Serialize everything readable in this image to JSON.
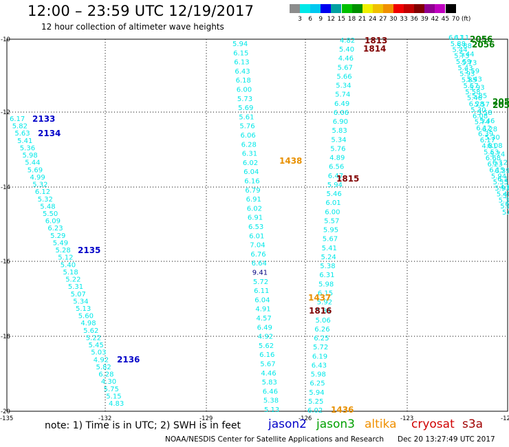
{
  "header": {
    "title": "12:00 – 23:59 UTC 12/19/2017",
    "subtitle": "12 hour collection of altimeter wave heights"
  },
  "colorscale": {
    "labels": [
      "3",
      "6",
      "9",
      "12",
      "15",
      "18",
      "21",
      "24",
      "27",
      "30",
      "33",
      "36",
      "39",
      "42",
      "45",
      "70",
      "(ft)"
    ],
    "colors": [
      "#8c8c8c",
      "#00e8e8",
      "#00c8f0",
      "#0000f0",
      "#00a0a0",
      "#00c000",
      "#009000",
      "#f0f000",
      "#f0c000",
      "#f09000",
      "#f00000",
      "#c00000",
      "#800000",
      "#900090",
      "#c000c0",
      "#000000"
    ]
  },
  "axes": {
    "lon_labels": [
      "-135",
      "-132",
      "-129",
      "-126",
      "-123",
      "-12"
    ],
    "lat_labels": [
      "-10",
      "-12",
      "-14",
      "-16",
      "-18",
      "-20"
    ]
  },
  "passes": [
    {
      "label": "2133",
      "mission": "jason2",
      "color": "#0000c8"
    },
    {
      "label": "2134",
      "mission": "jason2",
      "color": "#0000c8"
    },
    {
      "label": "2135",
      "mission": "jason2",
      "color": "#0000c8"
    },
    {
      "label": "2136",
      "mission": "jason2",
      "color": "#0000c8"
    },
    {
      "label": "1438",
      "mission": "altika",
      "color": "#e89000"
    },
    {
      "label": "1437",
      "mission": "altika",
      "color": "#e89000"
    },
    {
      "label": "1436",
      "mission": "altika",
      "color": "#e89000"
    },
    {
      "label": "1813",
      "mission": "cryosat",
      "color": "#800000"
    },
    {
      "label": "1814",
      "mission": "cryosat",
      "color": "#800000"
    },
    {
      "label": "1815",
      "mission": "cryosat",
      "color": "#800000"
    },
    {
      "label": "1816",
      "mission": "cryosat",
      "color": "#800000"
    },
    {
      "label": "2056",
      "mission": "jason3",
      "color": "#008000"
    },
    {
      "label": "2056",
      "mission": "jason3",
      "color": "#008000"
    },
    {
      "label": "205",
      "mission": "jason3",
      "color": "#008000"
    },
    {
      "label": "205",
      "mission": "jason3",
      "color": "#008000"
    }
  ],
  "tracks": {
    "left": [
      "6.17",
      "5.82",
      "5.63",
      "5.41",
      "5.36",
      "5.98",
      "5.44",
      "5.69",
      "4.99",
      "5.32",
      "6.12",
      "5.32",
      "5.48",
      "5.50",
      "6.09",
      "6.23",
      "5.29",
      "5.49",
      "5.28",
      "5.12",
      "5.40",
      "5.18",
      "5.22",
      "5.31",
      "5.07",
      "5.34",
      "5.13",
      "5.60",
      "4.98",
      "5.62",
      "5.22",
      "5.45",
      "5.03",
      "4.92",
      "5.82",
      "6.28",
      "4.30",
      "5.75",
      "5.15",
      "4.83"
    ],
    "mid_a": [
      "5.94",
      "6.15",
      "6.13",
      "6.43",
      "6.18",
      "6.00",
      "5.73",
      "5.69",
      "5.61",
      "5.76",
      "6.06",
      "6.28",
      "6.31",
      "6.02",
      "6.04",
      "6.16",
      "6.79",
      "6.91",
      "6.02",
      "6.91",
      "6.53",
      "6.01",
      "7.04",
      "6.76",
      "6.64",
      "9.41",
      "5.72",
      "6.11",
      "6.04",
      "4.91",
      "4.57",
      "6.49",
      "4.92",
      "5.62",
      "6.16",
      "5.67",
      "4.46",
      "5.83",
      "6.46",
      "5.38",
      "5.13"
    ],
    "mid_b": [
      "4.82",
      "5.40",
      "4.46",
      "5.67",
      "5.66",
      "5.34",
      "5.74",
      "6.49",
      "6.06",
      "6.90",
      "5.83",
      "5.34",
      "5.76",
      "4.89",
      "6.56",
      "6.47",
      "5.94",
      "5.46",
      "6.01",
      "6.00",
      "5.57",
      "5.95",
      "5.67",
      "5.41",
      "5.24",
      "5.38",
      "6.31",
      "5.98",
      "6.15",
      "5.92",
      "5.81",
      "5.06",
      "6.26",
      "6.25",
      "5.72",
      "6.19",
      "6.43",
      "5.98",
      "6.25",
      "5.94",
      "5.25",
      "6.02"
    ],
    "right": [
      "6.11",
      "5.88",
      "5.44",
      "5.73",
      "5.59",
      "5.43",
      "5.93",
      "5.85",
      "5.57",
      "5.58",
      "5.46",
      "6.28",
      "5.30",
      "6.08",
      "5.74",
      "6.12",
      "6.39",
      "6.17",
      "4.81",
      "5.53",
      "6.68",
      "6.23",
      "6.15",
      "5.94",
      "5.55",
      "5.93",
      "5.40",
      "5.37",
      "5.20",
      "5.10"
    ],
    "highlight_value": "9.41"
  },
  "notes": "note:  1) Time is in UTC;  2) SWH is in feet",
  "missions": [
    {
      "name": "jason2",
      "color": "#0000c8"
    },
    {
      "name": "jason3",
      "color": "#00a000"
    },
    {
      "name": "altika",
      "color": "#f09000"
    },
    {
      "name": "cryosat",
      "color": "#d00000"
    },
    {
      "name": "s3a",
      "color": "#a00000"
    }
  ],
  "footer": {
    "credit": "NOAA/NESDIS Center for Satellite Applications and Research",
    "timestamp": "Dec 20 13:27:49 UTC 2017"
  }
}
